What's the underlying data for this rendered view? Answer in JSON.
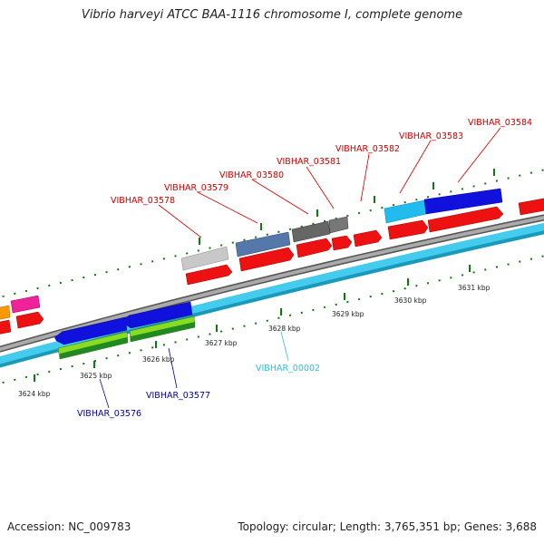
{
  "title": "Vibrio harveyi ATCC BAA-1116 chromosome I, complete genome",
  "footer": {
    "accession": "Accession: NC_009783",
    "summary": "Topology: circular; Length: 3,765,351 bp; Genes: 3,688"
  },
  "ticks": [
    "3624 kbp",
    "3625 kbp",
    "3626 kbp",
    "3627 kbp",
    "3628 kbp",
    "3629 kbp",
    "3630 kbp",
    "3631 kbp"
  ],
  "gene_labels_top": [
    "VIBHAR_03578",
    "VIBHAR_03579",
    "VIBHAR_03580",
    "VIBHAR_03581",
    "VIBHAR_03582",
    "VIBHAR_03583",
    "VIBHAR_03584"
  ],
  "gene_labels_bottom": [
    "VIBHAR_03576",
    "VIBHAR_03577"
  ],
  "gene_label_rna": "VIBHAR_00002",
  "colors": {
    "red_label": "#cc0000",
    "blue_label": "#000099",
    "cyan_label": "#33bbdd",
    "cds_red": "#ee0000",
    "gene_blue": "#0000dd",
    "rrna_cyan": "#33ccee",
    "green": "#228822",
    "light_green": "#88dd22",
    "grey_backbone": "#888888",
    "tick_green": "#117711"
  }
}
